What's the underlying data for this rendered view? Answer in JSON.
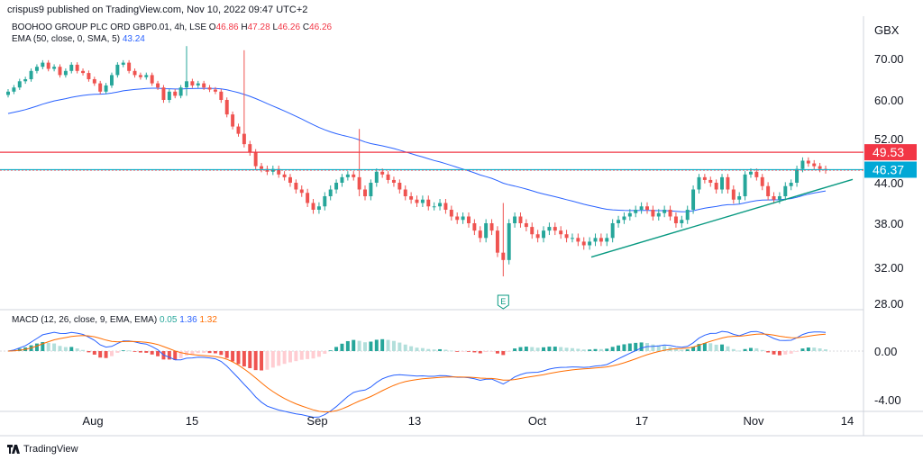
{
  "header": {
    "publisher": "crispus9 published on TradingView.com, Nov 10, 2022 09:47 UTC+2"
  },
  "legend": {
    "symbol": "BOOHOO GROUP PLC ORD GBP0.01, 4h, LSE",
    "o_label": "O",
    "o_value": "46.86",
    "h_label": "H",
    "h_value": "47.28",
    "l_label": "L",
    "l_value": "46.26",
    "c_label": "C",
    "c_value": "46.26",
    "ema_label": "EMA (50, close, 0, SMA, 5)",
    "ema_value": "43.24",
    "macd_label": "MACD (12, 26, close, 9, EMA, EMA)",
    "macd_hist": "0.05",
    "macd_line": "1.36",
    "macd_signal": "1.32"
  },
  "footer": {
    "brand": "TradingView"
  },
  "colors": {
    "up": "#26a69a",
    "down": "#ef5350",
    "ema": "#2962ff",
    "macd": "#2962ff",
    "signal": "#ff6d00",
    "resistance": "#f23645",
    "support": "#00bcd4",
    "trend": "#089981"
  },
  "chart_data": [
    {
      "type": "candlestick",
      "currency": "GBX",
      "x_ticks": [
        "Aug",
        "15",
        "Sep",
        "13",
        "Oct",
        "17",
        "Nov",
        "14"
      ],
      "y_ticks": [
        "70.00",
        "60.00",
        "52.00",
        "44.00",
        "38.00",
        "32.00",
        "28.00"
      ],
      "price_labels": {
        "resistance": "49.53",
        "last": "46.37"
      },
      "earnings_marker": "E",
      "close_series": [
        62,
        63,
        64.5,
        65,
        67,
        68,
        69,
        67.5,
        68,
        66,
        67,
        68.5,
        67,
        66.5,
        65,
        64,
        62,
        63.5,
        66,
        68.5,
        69,
        67,
        66,
        65.5,
        66,
        64,
        63,
        60,
        62,
        61,
        63,
        64.5,
        63.5,
        64,
        63,
        62.5,
        62,
        60,
        57,
        54.5,
        53,
        51,
        49.5,
        47,
        46.5,
        46,
        46.5,
        45.5,
        45,
        44,
        43,
        42.5,
        41,
        40,
        40.5,
        42,
        43,
        44,
        45,
        45.5,
        45,
        43,
        42,
        44,
        46,
        45.5,
        44.5,
        44,
        43,
        42,
        41.5,
        41,
        41.5,
        40.5,
        40.5,
        41,
        40,
        39,
        38.5,
        39,
        38,
        37,
        36,
        38,
        37,
        34,
        33,
        38,
        39,
        38,
        37.5,
        36.5,
        36,
        37,
        37.5,
        37,
        36.5,
        36,
        36,
        35.5,
        35,
        35.5,
        36,
        35.5,
        36,
        38,
        38.5,
        39,
        39.5,
        40,
        40.5,
        40,
        39,
        39.5,
        40,
        39,
        38,
        38.5,
        40,
        43,
        45,
        44.5,
        44,
        43,
        45,
        43,
        41.5,
        42,
        45.5,
        46,
        45,
        43.5,
        42,
        41.5,
        42,
        43.5,
        44,
        46.5,
        48,
        47.5,
        47,
        46.5,
        46.26
      ],
      "ema": {
        "name": "EMA",
        "last": 43.24
      },
      "resistance": 49.53,
      "support": 46.37,
      "trendline": [
        [
          0.0,
          33.4
        ],
        [
          1.0,
          44.6
        ]
      ]
    },
    {
      "type": "macd",
      "y_ticks": [
        "0.00",
        "-4.00"
      ],
      "macd_last": 1.36,
      "signal_last": 1.32,
      "hist_last": 0.05
    }
  ]
}
